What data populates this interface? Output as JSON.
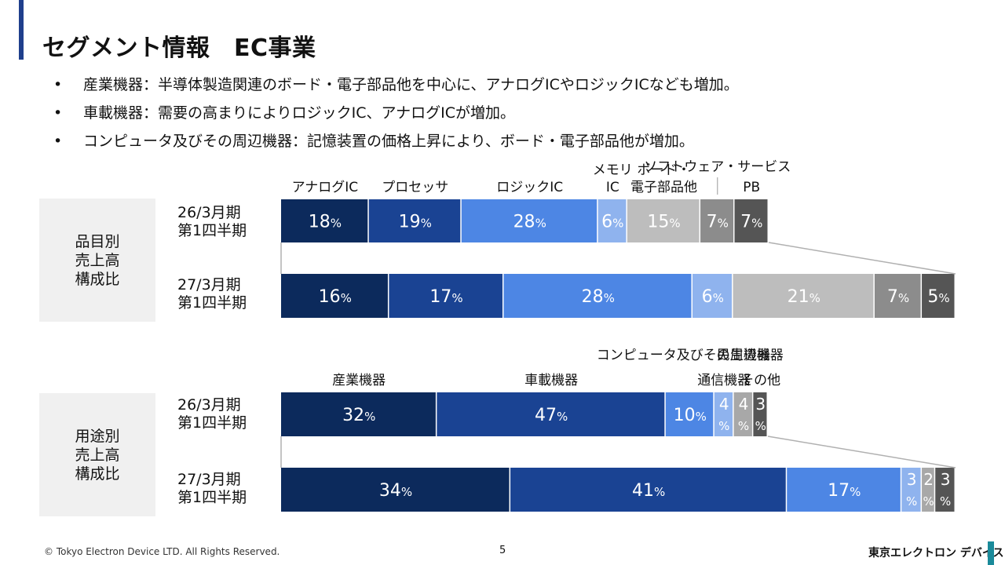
{
  "slide": {
    "title": "セグメント情報　EC事業",
    "bullets": [
      "産業機器：半導体製造関連のボード・電子部品他を中心に、アナログICやロジックICなども増加。",
      "車載機器：需要の高まりによりロジックIC、アナログICが増加。",
      "コンピュータ及びその周辺機器：記憶装置の価格上昇により、ボード・電子部品他が増加。"
    ],
    "bullet_symbol": "•",
    "page_number": "5",
    "copyright": "© Tokyo Electron Device LTD. All Rights Reserved.",
    "logo_text": "東京エレクトロン デバイス",
    "colors": {
      "accent": "#1f3f8c",
      "side_box": "#f0f0f0",
      "logo_mark": "#1a8a9a"
    }
  },
  "chart_data": [
    {
      "type": "bar",
      "orientation": "horizontal-stacked-100",
      "side_label": "品目別\n売上高\n構成比",
      "unit_suffix": "%",
      "categories": [
        "26/3月期\n第1四半期",
        "27/3月期\n第1四半期"
      ],
      "series": [
        {
          "name": "アナログIC",
          "values": [
            18,
            16
          ],
          "color": "#0c2a5c"
        },
        {
          "name": "プロセッサ",
          "values": [
            19,
            17
          ],
          "color": "#1a4393"
        },
        {
          "name": "ロジックIC",
          "values": [
            28,
            28
          ],
          "color": "#4d86e4"
        },
        {
          "name": "メモリIC",
          "values": [
            6,
            6
          ],
          "color": "#8fb3ee"
        },
        {
          "name": "ボード・電子部品他",
          "values": [
            15,
            21
          ],
          "color": "#bdbdbd"
        },
        {
          "name": "ソフトウェア・サービス",
          "values": [
            7,
            7
          ],
          "color": "#8c8c8c"
        },
        {
          "name": "PB",
          "values": [
            7,
            5
          ],
          "color": "#555555"
        }
      ],
      "legend_labels": [
        "アナログIC",
        "プロセッサ",
        "ロジックIC",
        "メモリ\nIC",
        "ボード・\n電子部品他",
        "ソフトウェア・サービス",
        "PB"
      ]
    },
    {
      "type": "bar",
      "orientation": "horizontal-stacked-100",
      "side_label": "用途別\n売上高\n構成比",
      "unit_suffix": "%",
      "categories": [
        "26/3月期\n第1四半期",
        "27/3月期\n第1四半期"
      ],
      "series": [
        {
          "name": "産業機器",
          "values": [
            32,
            34
          ],
          "color": "#0c2a5c"
        },
        {
          "name": "車載機器",
          "values": [
            47,
            41
          ],
          "color": "#1a4393"
        },
        {
          "name": "コンピュータ及びその周辺機器",
          "values": [
            10,
            17
          ],
          "color": "#4d86e4"
        },
        {
          "name": "通信機器",
          "values": [
            4,
            3
          ],
          "color": "#8fb3ee"
        },
        {
          "name": "民生機器",
          "values": [
            4,
            2
          ],
          "color": "#a8a8a8"
        },
        {
          "name": "その他",
          "values": [
            3,
            3
          ],
          "color": "#555555"
        }
      ],
      "legend_labels": [
        "産業機器",
        "車載機器",
        "コンピュータ及びその周辺機器",
        "通信機器",
        "民生機器",
        "その他"
      ]
    }
  ]
}
